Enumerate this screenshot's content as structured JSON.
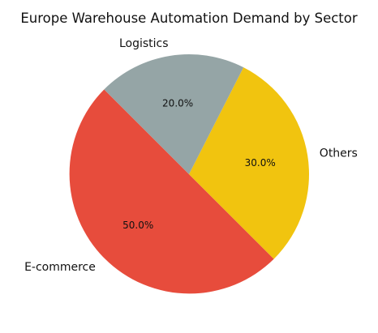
{
  "chart_data": {
    "type": "pie",
    "title": "Europe Warehouse Automation Demand by Sector",
    "start_angle_deg": 135,
    "direction": "counterclockwise",
    "slices": [
      {
        "label": "E-commerce",
        "value": 50.0,
        "pct_label": "50.0%",
        "color": "#e74c3c"
      },
      {
        "label": "Others",
        "value": 30.0,
        "pct_label": "30.0%",
        "color": "#f1c40f"
      },
      {
        "label": "Logistics",
        "value": 20.0,
        "pct_label": "20.0%",
        "color": "#95a5a6"
      }
    ]
  }
}
